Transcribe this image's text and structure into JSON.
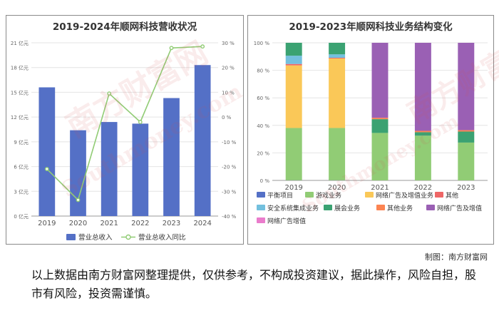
{
  "credit": "制图：南方财富网",
  "disclaimer": "以上数据由南方财富网整理提供，仅供参考，不构成投资建议，据此操作，风险自担，股市有风险，投资需谨慎。",
  "watermark": {
    "logo": "南方财富网",
    "url": "Southmoney.com"
  },
  "chart_data": [
    {
      "type": "bar",
      "title": "2019-2024年顺网科技营收状况",
      "categories": [
        "2019",
        "2020",
        "2021",
        "2022",
        "2023",
        "2024"
      ],
      "series": [
        {
          "name": "营业总收入",
          "type": "bar",
          "axis": "left",
          "color": "#5470c6",
          "values": [
            15.6,
            10.4,
            11.4,
            11.2,
            14.3,
            18.3
          ]
        },
        {
          "name": "营业总收入同比",
          "type": "line",
          "axis": "right",
          "color": "#91cc75",
          "values": [
            -21.0,
            -33.5,
            9.5,
            -2.0,
            27.9,
            28.5
          ]
        }
      ],
      "ylim_left": [
        0,
        21
      ],
      "yticks_left": [
        "0 亿元",
        "3 亿元",
        "6 亿元",
        "9 亿元",
        "12 亿元",
        "15 亿元",
        "18 亿元",
        "21 亿元"
      ],
      "ylim_right": [
        -40,
        30
      ],
      "yticks_right": [
        "-40 %",
        "-30 %",
        "-20 %",
        "-10 %",
        "0 %",
        "10 %",
        "20 %",
        "30 %"
      ],
      "legend_position": "bottom",
      "grid": true
    },
    {
      "type": "bar",
      "stacked": true,
      "title": "2019-2023年顺网科技业务结构变化",
      "categories": [
        "2019",
        "2020",
        "2021",
        "2022",
        "2023"
      ],
      "ylim": [
        0,
        100
      ],
      "yticks": [
        "0 %",
        "20 %",
        "40 %",
        "60 %",
        "80 %",
        "100 %"
      ],
      "series": [
        {
          "name": "平衡项目",
          "color": "#5470c6",
          "values": [
            0.1,
            0.1,
            0,
            0,
            0
          ]
        },
        {
          "name": "游戏业务",
          "color": "#91cc75",
          "values": [
            38.0,
            38.0,
            34.5,
            32.5,
            27.5
          ]
        },
        {
          "name": "网络广告及增值业务",
          "color": "#fac858",
          "values": [
            45.5,
            50.5,
            0,
            0,
            0
          ]
        },
        {
          "name": "其他",
          "color": "#ee6666",
          "values": [
            1.0,
            0.5,
            0,
            0,
            0
          ]
        },
        {
          "name": "安全系统集成业务",
          "color": "#73c0de",
          "values": [
            6.0,
            2.5,
            0,
            0,
            0
          ]
        },
        {
          "name": "展会业务",
          "color": "#3ba272",
          "values": [
            9.4,
            8.4,
            10.0,
            2.5,
            8.0
          ]
        },
        {
          "name": "其他业务",
          "color": "#fc8452",
          "values": [
            0,
            0,
            1.0,
            1.0,
            1.0
          ]
        },
        {
          "name": "网络广告及增值",
          "color": "#9a60b4",
          "values": [
            0,
            0,
            54.5,
            64.0,
            63.5
          ]
        },
        {
          "name": "网络广告增值",
          "color": "#ea7ccc",
          "values": [
            0,
            0,
            0,
            0,
            0
          ]
        }
      ],
      "legend_position": "bottom",
      "grid": true
    }
  ]
}
